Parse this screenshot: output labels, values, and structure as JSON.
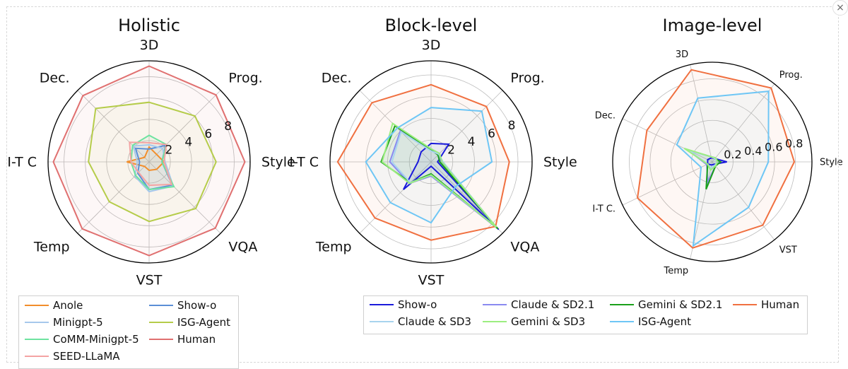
{
  "window": {
    "close_label": "×"
  },
  "chart_data": [
    {
      "type": "radar",
      "title": "Holistic",
      "axes": [
        "3D",
        "Prog.",
        "Style",
        "VQA",
        "VST",
        "Temp",
        "I-T C",
        "Dec."
      ],
      "rlim": [
        0,
        9.5
      ],
      "rticks": [
        2,
        4,
        6,
        8
      ],
      "rtick_labels": [
        "2",
        "4",
        "6",
        "8"
      ],
      "grid": true,
      "fill": true,
      "legend_position": "below",
      "series": [
        {
          "name": "Anole",
          "color": "#f28e2b",
          "values": [
            1.4,
            1.0,
            1.4,
            1.0,
            0.8,
            0.6,
            2.1,
            0.6
          ]
        },
        {
          "name": "Show-o",
          "color": "#5b8fd6",
          "values": [
            1.2,
            2.2,
            1.2,
            3.1,
            2.6,
            1.5,
            0.9,
            1.8
          ]
        },
        {
          "name": "Minigpt-5",
          "color": "#a6c8ec",
          "values": [
            1.6,
            1.8,
            1.5,
            3.2,
            2.8,
            1.9,
            1.1,
            2.1
          ]
        },
        {
          "name": "ISG-Agent",
          "color": "#b5cc4a",
          "values": [
            5.6,
            6.1,
            6.3,
            6.2,
            5.6,
            5.3,
            5.7,
            7.1
          ]
        },
        {
          "name": "CoMM-Minigpt-5",
          "color": "#6ee3a0",
          "values": [
            2.5,
            2.3,
            1.2,
            3.3,
            2.6,
            1.8,
            1.7,
            2.2
          ]
        },
        {
          "name": "Human",
          "color": "#e07070",
          "values": [
            9.0,
            8.9,
            9.0,
            8.8,
            8.8,
            8.9,
            9.0,
            8.8
          ]
        },
        {
          "name": "SEED-LLaMA",
          "color": "#f4a3a3",
          "values": [
            1.8,
            2.3,
            1.4,
            3.0,
            2.2,
            1.4,
            1.7,
            2.6
          ]
        }
      ]
    },
    {
      "type": "radar",
      "title": "Block-level",
      "axes": [
        "3D",
        "Prog.",
        "Style",
        "VQA",
        "VST",
        "Temp",
        "I-T C",
        "Dec."
      ],
      "rlim": [
        0,
        9.3
      ],
      "rticks": [
        2,
        4,
        6,
        8
      ],
      "rtick_labels": [
        "2",
        "4",
        "6",
        "8"
      ],
      "grid": true,
      "fill": true,
      "legend_position": "below",
      "series": [
        {
          "name": "Show-o",
          "color": "#1a1adb",
          "values": [
            1.7,
            2.3,
            0.6,
            8.8,
            0.4,
            3.6,
            1.2,
            1.3
          ]
        },
        {
          "name": "Claude & SD2.1",
          "color": "#8a8af0",
          "values": [
            1.2,
            1.0,
            0.9,
            8.7,
            1.3,
            2.8,
            3.8,
            4.0
          ]
        },
        {
          "name": "Gemini & SD2.1",
          "color": "#1aa01a",
          "values": [
            1.1,
            0.9,
            0.8,
            8.7,
            1.1,
            2.7,
            4.6,
            4.7
          ]
        },
        {
          "name": "Human",
          "color": "#f07040",
          "values": [
            7.1,
            7.2,
            7.2,
            8.4,
            7.2,
            7.3,
            8.6,
            7.7
          ]
        },
        {
          "name": "Claude & SD3",
          "color": "#a8d4ee",
          "values": [
            1.0,
            1.0,
            1.1,
            8.5,
            1.2,
            2.7,
            3.6,
            3.9
          ]
        },
        {
          "name": "Gemini & SD3",
          "color": "#9cee80",
          "values": [
            1.2,
            1.1,
            1.0,
            8.5,
            1.2,
            2.8,
            4.5,
            5.0
          ]
        },
        {
          "name": "ISG-Agent",
          "color": "#6ec6f5",
          "values": [
            5.0,
            6.6,
            5.6,
            3.2,
            5.6,
            5.3,
            6.0,
            4.4
          ]
        }
      ]
    },
    {
      "type": "radar",
      "title": "Image-level",
      "axes": [
        "Style",
        "Prog.",
        "3D",
        "Dec.",
        "I-T C.",
        "Temp",
        "VST"
      ],
      "rlim": [
        0,
        0.96
      ],
      "rticks": [
        0.2,
        0.4,
        0.6,
        0.8
      ],
      "rtick_labels": [
        "0.2",
        "0.4",
        "0.6",
        "0.8"
      ],
      "grid": true,
      "fill": true,
      "legend_position": "shared",
      "series": [
        {
          "name": "Show-o",
          "color": "#1a1adb",
          "values": [
            0.14,
            0.04,
            0.04,
            0.05,
            0.05,
            0.03,
            0.03
          ]
        },
        {
          "name": "Claude & SD2.1",
          "color": "#8a8af0",
          "values": [
            0.06,
            0.05,
            0.05,
            0.26,
            0.06,
            0.2,
            0.05
          ]
        },
        {
          "name": "Gemini & SD2.1",
          "color": "#1aa01a",
          "values": [
            0.08,
            0.04,
            0.05,
            0.28,
            0.05,
            0.27,
            0.05
          ]
        },
        {
          "name": "Human",
          "color": "#f07040",
          "values": [
            0.79,
            0.91,
            0.91,
            0.7,
            0.8,
            0.85,
            0.78
          ]
        },
        {
          "name": "Claude & SD3",
          "color": "#a8d4ee",
          "values": [
            0.05,
            0.04,
            0.05,
            0.25,
            0.05,
            0.06,
            0.04
          ]
        },
        {
          "name": "Gemini & SD3",
          "color": "#9cee80",
          "values": [
            0.05,
            0.05,
            0.05,
            0.3,
            0.05,
            0.08,
            0.05
          ]
        },
        {
          "name": "ISG-Agent",
          "color": "#6ec6f5",
          "values": [
            0.54,
            0.87,
            0.63,
            0.38,
            0.12,
            0.83,
            0.56
          ]
        }
      ]
    }
  ]
}
